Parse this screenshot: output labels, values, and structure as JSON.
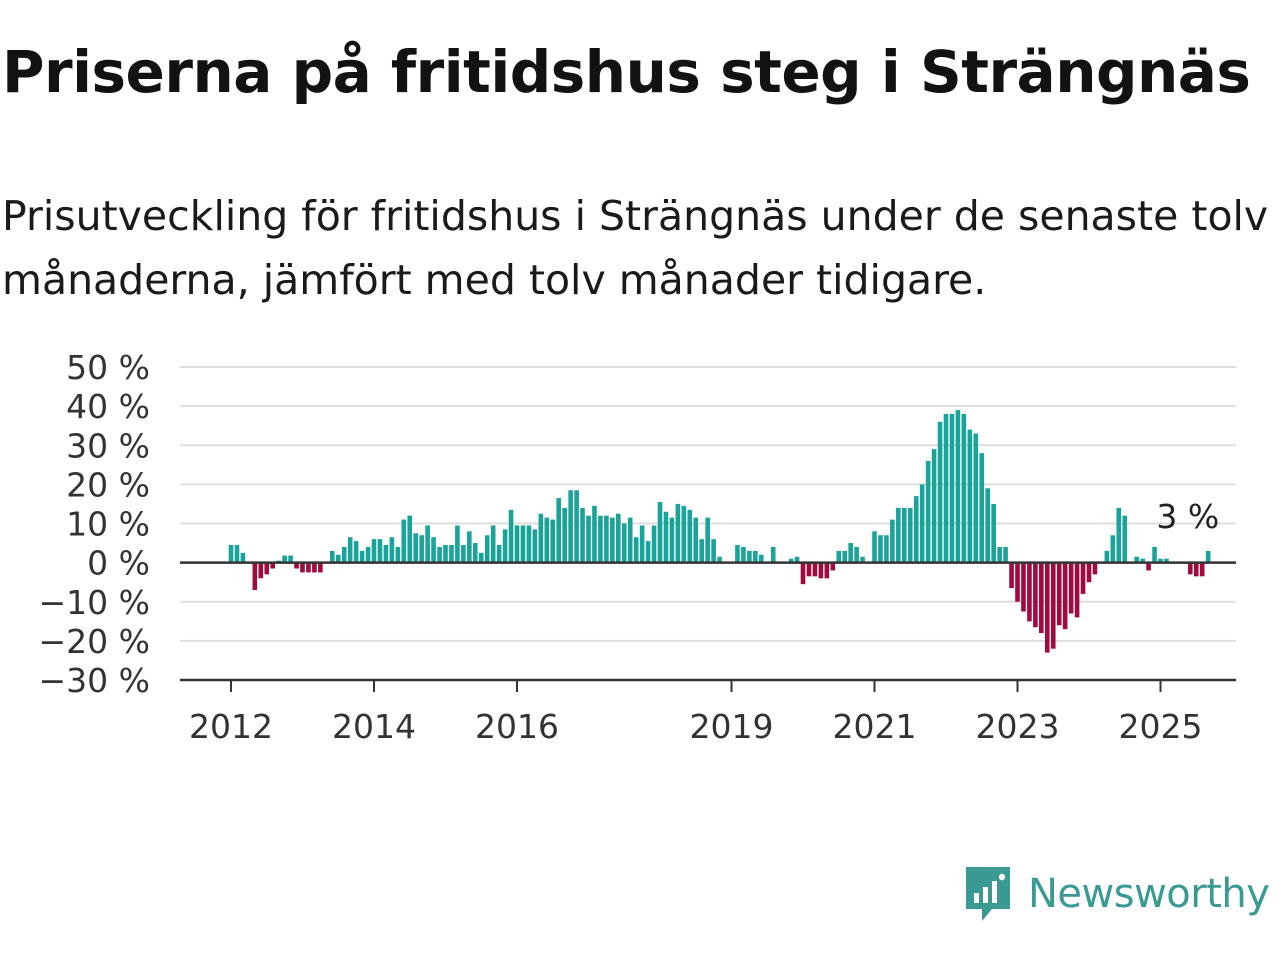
{
  "title": "Priserna på fritidshus steg i Strängnäs",
  "subtitle": "Prisutveckling för fritidshus i Strängnäs under de senaste tolv månaderna, jämfört med tolv månader tidigare.",
  "brand": {
    "name": "Newsworthy",
    "icon": "newsworthy-logo-icon",
    "color": "#3a9a93"
  },
  "colors": {
    "positive": "#1aa398",
    "negative": "#a10a3f",
    "grid": "#dddddd",
    "axis": "#333333"
  },
  "chart_data": {
    "type": "bar",
    "xlabel": "",
    "ylabel": "",
    "ylim": [
      -30,
      50
    ],
    "yticks": [
      50,
      40,
      30,
      20,
      10,
      0,
      -10,
      -20,
      -30
    ],
    "ytick_labels": [
      "50 %",
      "40 %",
      "30 %",
      "20 %",
      "10 %",
      "0 %",
      "−10 %",
      "−20 %",
      "−30 %"
    ],
    "xticks": [
      {
        "label": "2012",
        "date": "2012-01"
      },
      {
        "label": "2014",
        "date": "2014-01"
      },
      {
        "label": "2016",
        "date": "2016-01"
      },
      {
        "label": "2019",
        "date": "2019-01"
      },
      {
        "label": "2021",
        "date": "2021-01"
      },
      {
        "label": "2023",
        "date": "2023-01"
      },
      {
        "label": "2025",
        "date": "2025-01"
      }
    ],
    "grid": true,
    "annotation": {
      "text": "3 %",
      "date": "2025-03"
    },
    "series": [
      {
        "values": [
          [
            "2012-01",
            4.5
          ],
          [
            "2012-02",
            4.5
          ],
          [
            "2012-03",
            2.5
          ],
          [
            "2012-04",
            0
          ],
          [
            "2012-05",
            -7
          ],
          [
            "2012-06",
            -4
          ],
          [
            "2012-07",
            -3
          ],
          [
            "2012-08",
            -1.5
          ],
          [
            "2012-09",
            0.5
          ],
          [
            "2012-10",
            1.8
          ],
          [
            "2012-11",
            1.8
          ],
          [
            "2012-12",
            -1.5
          ],
          [
            "2013-01",
            -2.5
          ],
          [
            "2013-02",
            -2.5
          ],
          [
            "2013-03",
            -2.5
          ],
          [
            "2013-04",
            -2.5
          ],
          [
            "2013-05",
            0
          ],
          [
            "2013-06",
            3
          ],
          [
            "2013-07",
            2
          ],
          [
            "2013-08",
            4
          ],
          [
            "2013-09",
            6.5
          ],
          [
            "2013-10",
            5.5
          ],
          [
            "2013-11",
            3
          ],
          [
            "2013-12",
            4
          ],
          [
            "2014-01",
            6
          ],
          [
            "2014-02",
            6
          ],
          [
            "2014-03",
            4.5
          ],
          [
            "2014-04",
            6.5
          ],
          [
            "2014-05",
            4
          ],
          [
            "2014-06",
            11
          ],
          [
            "2014-07",
            12
          ],
          [
            "2014-08",
            7.5
          ],
          [
            "2014-09",
            7
          ],
          [
            "2014-10",
            9.5
          ],
          [
            "2014-11",
            6.5
          ],
          [
            "2014-12",
            4
          ],
          [
            "2015-01",
            4.5
          ],
          [
            "2015-02",
            4.5
          ],
          [
            "2015-03",
            9.5
          ],
          [
            "2015-04",
            4.5
          ],
          [
            "2015-05",
            8
          ],
          [
            "2015-06",
            5
          ],
          [
            "2015-07",
            2.5
          ],
          [
            "2015-08",
            7
          ],
          [
            "2015-09",
            9.5
          ],
          [
            "2015-10",
            4.5
          ],
          [
            "2015-11",
            8.5
          ],
          [
            "2015-12",
            13.5
          ],
          [
            "2016-01",
            9.5
          ],
          [
            "2016-02",
            9.5
          ],
          [
            "2016-03",
            9.5
          ],
          [
            "2016-04",
            8.5
          ],
          [
            "2016-05",
            12.5
          ],
          [
            "2016-06",
            11.5
          ],
          [
            "2016-07",
            11
          ],
          [
            "2016-08",
            16.5
          ],
          [
            "2016-09",
            14
          ],
          [
            "2016-10",
            18.5
          ],
          [
            "2016-11",
            18.5
          ],
          [
            "2016-12",
            14
          ],
          [
            "2017-01",
            12
          ],
          [
            "2017-02",
            14.5
          ],
          [
            "2017-03",
            12
          ],
          [
            "2017-04",
            12
          ],
          [
            "2017-05",
            11.5
          ],
          [
            "2017-06",
            12.5
          ],
          [
            "2017-07",
            10
          ],
          [
            "2017-08",
            11.5
          ],
          [
            "2017-09",
            6.5
          ],
          [
            "2017-10",
            9.5
          ],
          [
            "2017-11",
            5.5
          ],
          [
            "2017-12",
            9.5
          ],
          [
            "2018-01",
            15.5
          ],
          [
            "2018-02",
            13
          ],
          [
            "2018-03",
            11.5
          ],
          [
            "2018-04",
            15
          ],
          [
            "2018-05",
            14.5
          ],
          [
            "2018-06",
            13.5
          ],
          [
            "2018-07",
            11.5
          ],
          [
            "2018-08",
            6
          ],
          [
            "2018-09",
            11.5
          ],
          [
            "2018-10",
            6
          ],
          [
            "2018-11",
            1.5
          ],
          [
            "2018-12",
            0
          ],
          [
            "2019-01",
            0
          ],
          [
            "2019-02",
            4.5
          ],
          [
            "2019-03",
            4
          ],
          [
            "2019-04",
            3
          ],
          [
            "2019-05",
            3
          ],
          [
            "2019-06",
            2
          ],
          [
            "2019-07",
            0
          ],
          [
            "2019-08",
            4
          ],
          [
            "2019-09",
            0
          ],
          [
            "2019-10",
            0
          ],
          [
            "2019-11",
            1
          ],
          [
            "2019-12",
            1.5
          ],
          [
            "2020-01",
            -5.5
          ],
          [
            "2020-02",
            -3.5
          ],
          [
            "2020-03",
            -3.5
          ],
          [
            "2020-04",
            -4
          ],
          [
            "2020-05",
            -4
          ],
          [
            "2020-06",
            -2
          ],
          [
            "2020-07",
            3
          ],
          [
            "2020-08",
            3
          ],
          [
            "2020-09",
            5
          ],
          [
            "2020-10",
            4
          ],
          [
            "2020-11",
            1.5
          ],
          [
            "2020-12",
            0
          ],
          [
            "2021-01",
            8
          ],
          [
            "2021-02",
            7
          ],
          [
            "2021-03",
            7
          ],
          [
            "2021-04",
            11
          ],
          [
            "2021-05",
            14
          ],
          [
            "2021-06",
            14
          ],
          [
            "2021-07",
            14
          ],
          [
            "2021-08",
            17
          ],
          [
            "2021-09",
            20
          ],
          [
            "2021-10",
            26
          ],
          [
            "2021-11",
            29
          ],
          [
            "2021-12",
            36
          ],
          [
            "2022-01",
            38
          ],
          [
            "2022-02",
            38
          ],
          [
            "2022-03",
            39
          ],
          [
            "2022-04",
            38
          ],
          [
            "2022-05",
            34
          ],
          [
            "2022-06",
            33
          ],
          [
            "2022-07",
            28
          ],
          [
            "2022-08",
            19
          ],
          [
            "2022-09",
            15
          ],
          [
            "2022-10",
            4
          ],
          [
            "2022-11",
            4
          ],
          [
            "2022-12",
            -6.5
          ],
          [
            "2023-01",
            -10
          ],
          [
            "2023-02",
            -12.5
          ],
          [
            "2023-03",
            -15
          ],
          [
            "2023-04",
            -16.5
          ],
          [
            "2023-05",
            -18
          ],
          [
            "2023-06",
            -23
          ],
          [
            "2023-07",
            -22
          ],
          [
            "2023-08",
            -16
          ],
          [
            "2023-09",
            -17
          ],
          [
            "2023-10",
            -13
          ],
          [
            "2023-11",
            -14
          ],
          [
            "2023-12",
            -8
          ],
          [
            "2024-01",
            -5
          ],
          [
            "2024-02",
            -3
          ],
          [
            "2024-03",
            0
          ],
          [
            "2024-04",
            3
          ],
          [
            "2024-05",
            7
          ],
          [
            "2024-06",
            14
          ],
          [
            "2024-07",
            12
          ],
          [
            "2024-08",
            0
          ],
          [
            "2024-09",
            1.5
          ],
          [
            "2024-10",
            1
          ],
          [
            "2024-11",
            -2
          ],
          [
            "2024-12",
            4
          ],
          [
            "2025-01",
            1
          ],
          [
            "2025-02",
            1
          ],
          [
            "2025-03",
            0
          ],
          [
            "2025-04",
            0
          ],
          [
            "2025-05",
            0
          ],
          [
            "2025-06",
            -3
          ],
          [
            "2025-07",
            -3.5
          ],
          [
            "2025-08",
            -3.5
          ],
          [
            "2025-09",
            3
          ]
        ]
      }
    ]
  }
}
